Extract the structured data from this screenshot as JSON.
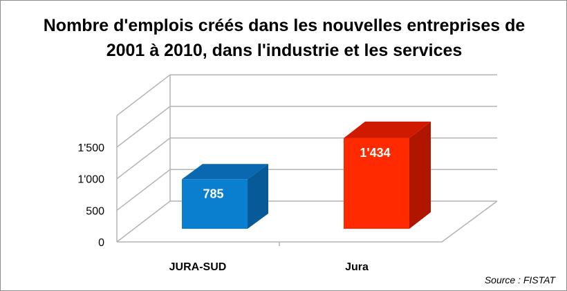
{
  "chart_data": {
    "type": "bar",
    "title": "Nombre d'emplois créés dans les nouvelles entreprises de 2001 à 2010, dans l'industrie et les services",
    "categories": [
      "JURA-SUD",
      "Jura"
    ],
    "values": [
      785,
      1434
    ],
    "value_labels": [
      "785",
      "1'434"
    ],
    "ylim": [
      0,
      2000
    ],
    "yticks": [
      0,
      500,
      1000,
      1500
    ],
    "ytick_labels": [
      "0",
      "500",
      "1'000",
      "1'500"
    ],
    "grid": true,
    "legend": "none",
    "colors": {
      "JURA-SUD": {
        "front": "#0a7fd0",
        "top": "#0968b0",
        "side": "#075a98"
      },
      "Jura": {
        "front": "#ff2a00",
        "top": "#d01a00",
        "side": "#b01500"
      },
      "grid": "#b3b3b3"
    }
  },
  "source": "Source : FISTAT"
}
